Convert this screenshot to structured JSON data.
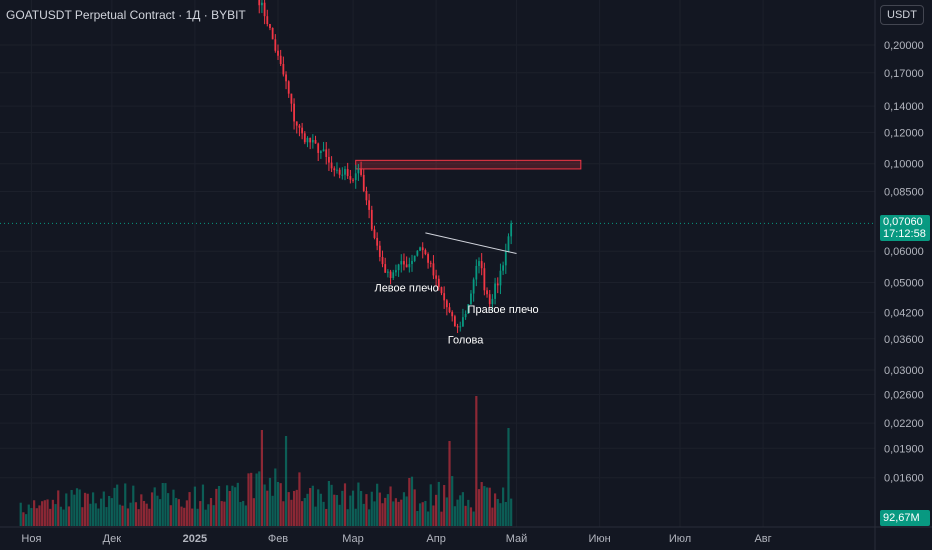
{
  "header": {
    "title": "GOATUSDT Perpetual Contract · 1Д · BYBIT"
  },
  "currency_button": {
    "label": "USDT"
  },
  "last_price": {
    "value": "0,07060",
    "countdown": "17:12:58"
  },
  "volume_label": {
    "value": "92,67M"
  },
  "colors": {
    "up": "#089981",
    "down": "#f23645",
    "background": "#131722",
    "zone": "#f23645"
  },
  "chart_data": {
    "type": "candlestick",
    "title": "GOATUSDT Perpetual Contract · 1Д · BYBIT",
    "y_scale": "log",
    "ylim": [
      0.012,
      0.26
    ],
    "y_ticks": [
      {
        "value": 0.2,
        "label": "0,20000"
      },
      {
        "value": 0.17,
        "label": "0,17000"
      },
      {
        "value": 0.14,
        "label": "0,14000"
      },
      {
        "value": 0.12,
        "label": "0,12000"
      },
      {
        "value": 0.1,
        "label": "0,10000"
      },
      {
        "value": 0.085,
        "label": "0,08500"
      },
      {
        "value": 0.06,
        "label": "0,06000"
      },
      {
        "value": 0.05,
        "label": "0,05000"
      },
      {
        "value": 0.042,
        "label": "0,04200"
      },
      {
        "value": 0.036,
        "label": "0,03600"
      },
      {
        "value": 0.03,
        "label": "0,03000"
      },
      {
        "value": 0.026,
        "label": "0,02600"
      },
      {
        "value": 0.022,
        "label": "0,02200"
      },
      {
        "value": 0.019,
        "label": "0,01900"
      },
      {
        "value": 0.016,
        "label": "0,01600"
      }
    ],
    "x_labels": [
      "Ноя",
      "Дек",
      "2025",
      "Фев",
      "Мар",
      "Апр",
      "Май",
      "Июн",
      "Июл",
      "Авг"
    ],
    "x_label_dates": [
      "2024-11-01",
      "2024-12-01",
      "2025-01-01",
      "2025-02-01",
      "2025-03-01",
      "2025-04-01",
      "2025-05-01",
      "2025-06-01",
      "2025-07-01",
      "2025-08-01"
    ],
    "last_price": 0.0706,
    "price_path": [
      {
        "date": "2025-01-25",
        "price": 0.26
      },
      {
        "date": "2025-01-28",
        "price": 0.23
      },
      {
        "date": "2025-02-01",
        "price": 0.185
      },
      {
        "date": "2025-02-04",
        "price": 0.16
      },
      {
        "date": "2025-02-07",
        "price": 0.13
      },
      {
        "date": "2025-02-10",
        "price": 0.118
      },
      {
        "date": "2025-02-14",
        "price": 0.112
      },
      {
        "date": "2025-02-18",
        "price": 0.106
      },
      {
        "date": "2025-02-22",
        "price": 0.094
      },
      {
        "date": "2025-02-26",
        "price": 0.095
      },
      {
        "date": "2025-03-01",
        "price": 0.092
      },
      {
        "date": "2025-03-03",
        "price": 0.098
      },
      {
        "date": "2025-03-05",
        "price": 0.085
      },
      {
        "date": "2025-03-08",
        "price": 0.07
      },
      {
        "date": "2025-03-11",
        "price": 0.058
      },
      {
        "date": "2025-03-14",
        "price": 0.052
      },
      {
        "date": "2025-03-18",
        "price": 0.055
      },
      {
        "date": "2025-03-22",
        "price": 0.056
      },
      {
        "date": "2025-03-26",
        "price": 0.062
      },
      {
        "date": "2025-03-29",
        "price": 0.057
      },
      {
        "date": "2025-04-01",
        "price": 0.05
      },
      {
        "date": "2025-04-04",
        "price": 0.045
      },
      {
        "date": "2025-04-07",
        "price": 0.04
      },
      {
        "date": "2025-04-09",
        "price": 0.038
      },
      {
        "date": "2025-04-12",
        "price": 0.042
      },
      {
        "date": "2025-04-15",
        "price": 0.05
      },
      {
        "date": "2025-04-17",
        "price": 0.058
      },
      {
        "date": "2025-04-19",
        "price": 0.049
      },
      {
        "date": "2025-04-21",
        "price": 0.045
      },
      {
        "date": "2025-04-24",
        "price": 0.05
      },
      {
        "date": "2025-04-27",
        "price": 0.06
      },
      {
        "date": "2025-04-29",
        "price": 0.0706
      }
    ],
    "volume_range": [
      "2024-10-28",
      "2025-04-29"
    ],
    "resistance_zone": {
      "date_start": "2025-03-02",
      "date_end": "2025-05-25",
      "price_low": 0.097,
      "price_high": 0.102
    },
    "neckline": {
      "start": {
        "date": "2025-03-28",
        "price": 0.0668
      },
      "end": {
        "date": "2025-05-01",
        "price": 0.0592
      }
    },
    "annotations": [
      {
        "text": "Левое плечо",
        "date": "2025-03-21",
        "price": 0.0485
      },
      {
        "text": "Голова",
        "date": "2025-04-12",
        "price": 0.0358
      },
      {
        "text": "Правое плечо",
        "date": "2025-04-26",
        "price": 0.0428
      }
    ]
  }
}
